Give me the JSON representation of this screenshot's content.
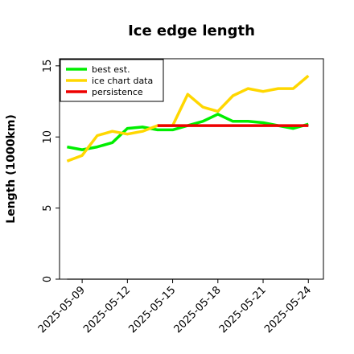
{
  "chart_data": {
    "type": "line",
    "title": "Ice edge length",
    "xlabel": "",
    "ylabel": "Length (1000km)",
    "ylim": [
      0,
      15.5
    ],
    "xlim": [
      "2025-05-07T12:00",
      "2025-05-25T00:00"
    ],
    "yticks": [
      0,
      5,
      10,
      15
    ],
    "xticks": [
      "2025-05-09",
      "2025-05-12",
      "2025-05-15",
      "2025-05-18",
      "2025-05-21",
      "2025-05-24"
    ],
    "grid": false,
    "legend_position": "top-left",
    "reference_line": {
      "y": 0,
      "x_start": "2025-05-08",
      "x_end": "2025-05-24",
      "color": "#808080"
    },
    "series": [
      {
        "name": "best est.",
        "color": "#00ee00",
        "x": [
          "2025-05-08",
          "2025-05-09",
          "2025-05-10",
          "2025-05-11",
          "2025-05-12",
          "2025-05-13",
          "2025-05-14",
          "2025-05-15",
          "2025-05-16",
          "2025-05-17",
          "2025-05-18",
          "2025-05-19",
          "2025-05-20",
          "2025-05-21",
          "2025-05-22",
          "2025-05-23",
          "2025-05-24"
        ],
        "values": [
          9.3,
          9.1,
          9.3,
          9.6,
          10.6,
          10.7,
          10.5,
          10.5,
          10.8,
          11.1,
          11.6,
          11.1,
          11.1,
          11.0,
          10.8,
          10.6,
          10.9
        ]
      },
      {
        "name": "ice chart data",
        "color": "#ffd700",
        "x": [
          "2025-05-08",
          "2025-05-09",
          "2025-05-10",
          "2025-05-11",
          "2025-05-12",
          "2025-05-13",
          "2025-05-14",
          "2025-05-15",
          "2025-05-16",
          "2025-05-17",
          "2025-05-18",
          "2025-05-19",
          "2025-05-20",
          "2025-05-21",
          "2025-05-22",
          "2025-05-23",
          "2025-05-24"
        ],
        "values": [
          8.3,
          8.7,
          10.1,
          10.4,
          10.2,
          10.4,
          10.8,
          10.8,
          13.0,
          12.1,
          11.8,
          12.9,
          13.4,
          13.2,
          13.4,
          13.4,
          14.3
        ]
      },
      {
        "name": "persistence",
        "color": "#ee0000",
        "x": [
          "2025-05-14",
          "2025-05-24"
        ],
        "values": [
          10.8,
          10.8
        ]
      }
    ]
  }
}
